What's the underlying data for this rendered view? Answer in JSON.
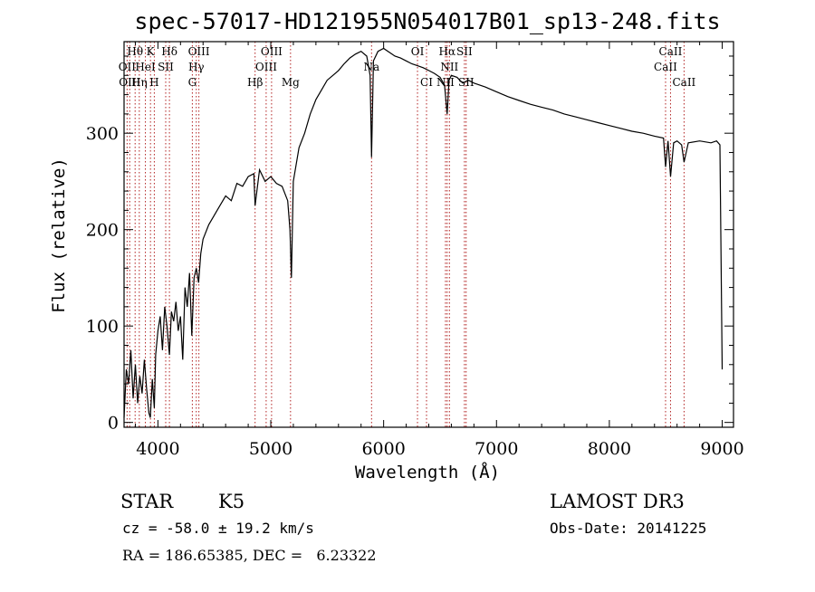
{
  "chart_data": {
    "type": "line",
    "title": "spec-57017-HD121955N054017B01_sp13-248.fits",
    "xlabel": "Wavelength (Å)",
    "ylabel": "Flux (relative)",
    "xlim": [
      3700,
      9100
    ],
    "ylim": [
      -5,
      395
    ],
    "x_ticks": [
      4000,
      5000,
      6000,
      7000,
      8000,
      9000
    ],
    "y_ticks": [
      0,
      100,
      200,
      300
    ],
    "grid": false,
    "series": [
      {
        "x": [
          3700,
          3720,
          3740,
          3760,
          3780,
          3800,
          3820,
          3840,
          3860,
          3880,
          3900,
          3920,
          3933,
          3950,
          3968,
          3980,
          4000,
          4020,
          4040,
          4060,
          4080,
          4102,
          4120,
          4140,
          4160,
          4180,
          4200,
          4220,
          4240,
          4260,
          4280,
          4300,
          4320,
          4340,
          4360,
          4380,
          4400,
          4450,
          4500,
          4550,
          4600,
          4650,
          4700,
          4750,
          4800,
          4850,
          4861,
          4900,
          4950,
          5000,
          5050,
          5100,
          5150,
          5170,
          5183,
          5200,
          5250,
          5300,
          5350,
          5400,
          5450,
          5500,
          5550,
          5600,
          5650,
          5700,
          5750,
          5800,
          5850,
          5880,
          5893,
          5910,
          5950,
          6000,
          6050,
          6100,
          6150,
          6200,
          6250,
          6300,
          6350,
          6400,
          6450,
          6500,
          6540,
          6563,
          6580,
          6600,
          6650,
          6700,
          6750,
          6800,
          6900,
          7000,
          7100,
          7200,
          7300,
          7400,
          7500,
          7600,
          7700,
          7800,
          7900,
          8000,
          8100,
          8200,
          8300,
          8400,
          8480,
          8498,
          8520,
          8542,
          8570,
          8600,
          8640,
          8662,
          8700,
          8800,
          8900,
          8950,
          8980,
          9000
        ],
        "y": [
          5,
          55,
          40,
          75,
          25,
          60,
          20,
          48,
          30,
          65,
          35,
          10,
          5,
          45,
          15,
          70,
          95,
          110,
          75,
          120,
          100,
          70,
          115,
          105,
          125,
          95,
          110,
          65,
          140,
          120,
          155,
          90,
          150,
          160,
          145,
          175,
          190,
          205,
          215,
          225,
          235,
          230,
          248,
          245,
          255,
          258,
          225,
          262,
          250,
          255,
          248,
          245,
          230,
          200,
          150,
          250,
          285,
          300,
          320,
          335,
          345,
          355,
          360,
          365,
          372,
          378,
          382,
          385,
          380,
          360,
          275,
          375,
          385,
          388,
          384,
          380,
          378,
          375,
          372,
          370,
          368,
          365,
          362,
          358,
          350,
          320,
          355,
          360,
          358,
          352,
          355,
          352,
          348,
          343,
          338,
          334,
          330,
          327,
          324,
          320,
          317,
          314,
          311,
          308,
          305,
          302,
          300,
          297,
          295,
          265,
          292,
          255,
          290,
          292,
          288,
          270,
          290,
          292,
          290,
          292,
          288,
          55
        ]
      }
    ],
    "line_labels": [
      {
        "label": "Hθ",
        "wl": 3798,
        "row": 0
      },
      {
        "label": "K",
        "wl": 3934,
        "row": 0
      },
      {
        "label": "Hδ",
        "wl": 4102,
        "row": 0
      },
      {
        "label": "OIII",
        "wl": 4363,
        "row": 0
      },
      {
        "label": "OIII",
        "wl": 5007,
        "row": 0
      },
      {
        "label": "OI",
        "wl": 6300,
        "row": 0
      },
      {
        "label": "Hα",
        "wl": 6563,
        "row": 0
      },
      {
        "label": "SII",
        "wl": 6716,
        "row": 0
      },
      {
        "label": "CaII",
        "wl": 8542,
        "row": 0
      },
      {
        "label": "OII",
        "wl": 3727,
        "row": 1
      },
      {
        "label": "HeI",
        "wl": 3889,
        "row": 1
      },
      {
        "label": "SII",
        "wl": 4069,
        "row": 1
      },
      {
        "label": "Hγ",
        "wl": 4340,
        "row": 1
      },
      {
        "label": "OIII",
        "wl": 4959,
        "row": 1
      },
      {
        "label": "Na",
        "wl": 5893,
        "row": 1
      },
      {
        "label": "NII",
        "wl": 6583,
        "row": 1
      },
      {
        "label": "CaII",
        "wl": 8498,
        "row": 1
      },
      {
        "label": "OIII",
        "wl": 3750,
        "row": 2
      },
      {
        "label": "Hη",
        "wl": 3835,
        "row": 2
      },
      {
        "label": "H",
        "wl": 3968,
        "row": 2
      },
      {
        "label": "G",
        "wl": 4305,
        "row": 2
      },
      {
        "label": "Hβ",
        "wl": 4861,
        "row": 2
      },
      {
        "label": "Mg",
        "wl": 5175,
        "row": 2
      },
      {
        "label": "CI",
        "wl": 6380,
        "row": 2
      },
      {
        "label": "NII",
        "wl": 6548,
        "row": 2
      },
      {
        "label": "SII",
        "wl": 6731,
        "row": 2
      },
      {
        "label": "CaII",
        "wl": 8662,
        "row": 2
      }
    ]
  },
  "info": {
    "object_class": "STAR",
    "subclass": "K5",
    "survey": "LAMOST DR3",
    "cz": "cz = -58.0 ± 19.2 km/s",
    "obs_date": "Obs-Date: 20141225",
    "coords": "RA = 186.65385, DEC =   6.23322"
  },
  "colors": {
    "line_marker": "#b22222",
    "spectrum": "#000000"
  }
}
